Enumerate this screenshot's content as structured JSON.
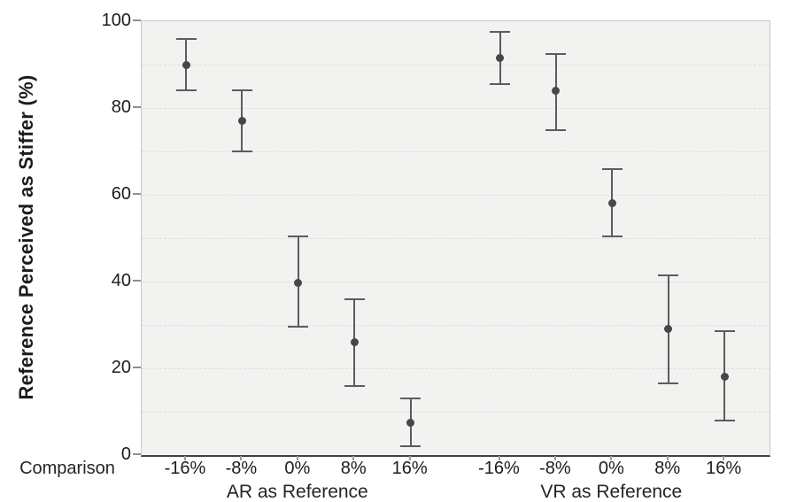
{
  "chart_data": {
    "type": "scatter",
    "subtype": "point-plot-with-error-bars",
    "title": "",
    "ylabel": "Reference Perceived as Stiffer (%)",
    "xlabel_prefix": "Comparison",
    "ylim": [
      0,
      100
    ],
    "yticks": [
      0,
      20,
      40,
      60,
      80,
      100
    ],
    "grid": {
      "horizontal_dashed_every": 10,
      "from": 10,
      "to": 90
    },
    "legend": "none",
    "error_bars": true,
    "categories": [
      "-16%",
      "-8%",
      "0%",
      "8%",
      "16%"
    ],
    "groups": [
      {
        "label": "AR as Reference",
        "points": [
          {
            "category": "-16%",
            "mean": 90,
            "ci_low": 84,
            "ci_high": 96
          },
          {
            "category": "-8%",
            "mean": 77,
            "ci_low": 70,
            "ci_high": 84
          },
          {
            "category": "0%",
            "mean": 39.7,
            "ci_low": 29.5,
            "ci_high": 50.5
          },
          {
            "category": "8%",
            "mean": 26,
            "ci_low": 16,
            "ci_high": 36
          },
          {
            "category": "16%",
            "mean": 7.5,
            "ci_low": 2,
            "ci_high": 13
          }
        ]
      },
      {
        "label": "VR as Reference",
        "points": [
          {
            "category": "-16%",
            "mean": 91.5,
            "ci_low": 85.5,
            "ci_high": 97.5
          },
          {
            "category": "-8%",
            "mean": 84,
            "ci_low": 75,
            "ci_high": 92.5
          },
          {
            "category": "0%",
            "mean": 58,
            "ci_low": 50.5,
            "ci_high": 66
          },
          {
            "category": "8%",
            "mean": 29,
            "ci_low": 16.5,
            "ci_high": 41.5
          },
          {
            "category": "16%",
            "mean": 18,
            "ci_low": 8,
            "ci_high": 28.5
          }
        ]
      }
    ],
    "colors": {
      "point": "#474747",
      "error_bar": "#5c5c5c",
      "plot_background": "#f2f2f1",
      "gridline": "#dededc",
      "frame": "#c7c7c7",
      "axis_line": "#3f3f3f",
      "text": "#1c1c1c"
    }
  }
}
